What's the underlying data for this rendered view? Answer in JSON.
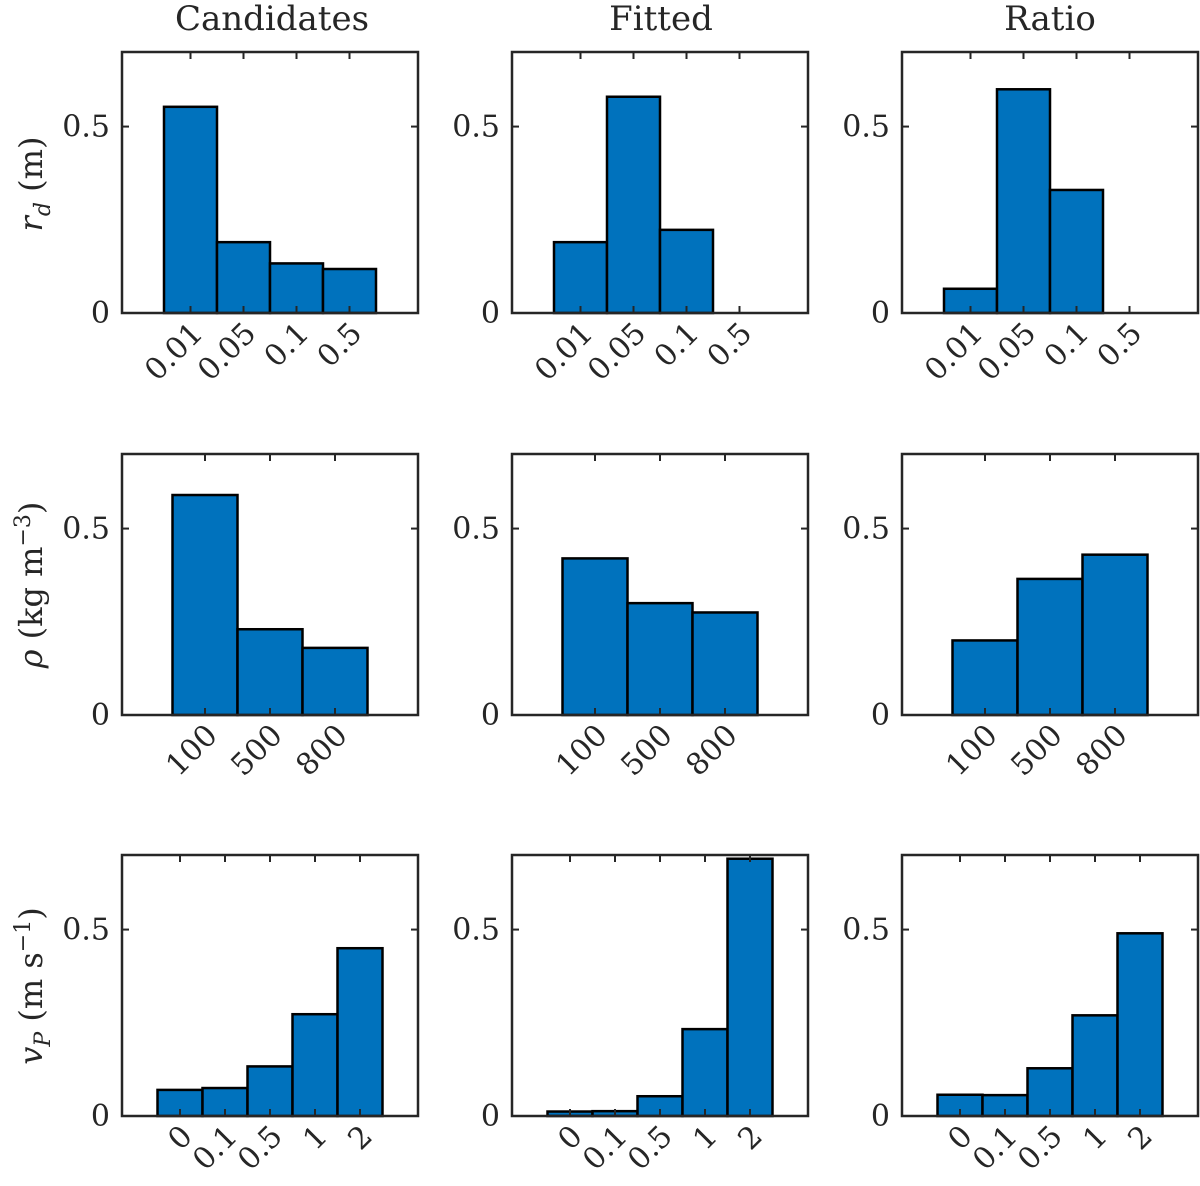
{
  "colors": {
    "bar_fill": "#0072bd",
    "bar_edge": "#000000",
    "axis": "#262626"
  },
  "column_titles": [
    "Candidates",
    "Fitted",
    "Ratio"
  ],
  "row_labels": [
    {
      "main": "r",
      "sub": "d",
      "unit": " (m)"
    },
    {
      "main": "ρ",
      "unit": " (kg m",
      "sup": "−3",
      "close": ")"
    },
    {
      "main": "v",
      "sub": "P",
      "unit": " (m s",
      "sup": "−1",
      "close": ")"
    }
  ],
  "chart_data": [
    {
      "type": "bar",
      "title": "Candidates",
      "ylabel": "r_d (m)",
      "categories": [
        "0.01",
        "0.05",
        "0.1",
        "0.5"
      ],
      "values": [
        0.553,
        0.19,
        0.133,
        0.118
      ],
      "ylim": [
        0,
        0.7
      ],
      "yticks": [
        0,
        0.5
      ],
      "ytick_labels": [
        "0",
        "0.5"
      ]
    },
    {
      "type": "bar",
      "title": "Fitted",
      "ylabel": "",
      "categories": [
        "0.01",
        "0.05",
        "0.1",
        "0.5"
      ],
      "values": [
        0.19,
        0.58,
        0.223,
        0.0
      ],
      "ylim": [
        0,
        0.7
      ],
      "yticks": [
        0,
        0.5
      ],
      "ytick_labels": [
        "0",
        "0.5"
      ]
    },
    {
      "type": "bar",
      "title": "Ratio",
      "ylabel": "",
      "categories": [
        "0.01",
        "0.05",
        "0.1",
        "0.5"
      ],
      "values": [
        0.065,
        0.6,
        0.33,
        0.0
      ],
      "ylim": [
        0,
        0.7
      ],
      "yticks": [
        0,
        0.5
      ],
      "ytick_labels": [
        "0",
        "0.5"
      ]
    },
    {
      "type": "bar",
      "title": "",
      "ylabel": "ρ (kg m^−3)",
      "categories": [
        "100",
        "500",
        "800"
      ],
      "values": [
        0.59,
        0.23,
        0.18
      ],
      "ylim": [
        0,
        0.7
      ],
      "yticks": [
        0,
        0.5
      ],
      "ytick_labels": [
        "0",
        "0.5"
      ]
    },
    {
      "type": "bar",
      "title": "",
      "ylabel": "",
      "categories": [
        "100",
        "500",
        "800"
      ],
      "values": [
        0.42,
        0.3,
        0.275
      ],
      "ylim": [
        0,
        0.7
      ],
      "yticks": [
        0,
        0.5
      ],
      "ytick_labels": [
        "0",
        "0.5"
      ]
    },
    {
      "type": "bar",
      "title": "",
      "ylabel": "",
      "categories": [
        "100",
        "500",
        "800"
      ],
      "values": [
        0.2,
        0.365,
        0.43
      ],
      "ylim": [
        0,
        0.7
      ],
      "yticks": [
        0,
        0.5
      ],
      "ytick_labels": [
        "0",
        "0.5"
      ]
    },
    {
      "type": "bar",
      "title": "",
      "ylabel": "v_P (m s^−1)",
      "categories": [
        "0",
        "0.1",
        "0.5",
        "1",
        "2"
      ],
      "values": [
        0.07,
        0.075,
        0.133,
        0.273,
        0.45
      ],
      "ylim": [
        0,
        0.7
      ],
      "yticks": [
        0,
        0.5
      ],
      "ytick_labels": [
        "0",
        "0.5"
      ]
    },
    {
      "type": "bar",
      "title": "",
      "ylabel": "",
      "categories": [
        "0",
        "0.1",
        "0.5",
        "1",
        "2"
      ],
      "values": [
        0.012,
        0.013,
        0.053,
        0.233,
        0.69
      ],
      "ylim": [
        0,
        0.7
      ],
      "yticks": [
        0,
        0.5
      ],
      "ytick_labels": [
        "0",
        "0.5"
      ]
    },
    {
      "type": "bar",
      "title": "",
      "ylabel": "",
      "categories": [
        "0",
        "0.1",
        "0.5",
        "1",
        "2"
      ],
      "values": [
        0.057,
        0.056,
        0.128,
        0.27,
        0.49
      ],
      "ylim": [
        0,
        0.7
      ],
      "yticks": [
        0,
        0.5
      ],
      "ytick_labels": [
        "0",
        "0.5"
      ]
    }
  ]
}
